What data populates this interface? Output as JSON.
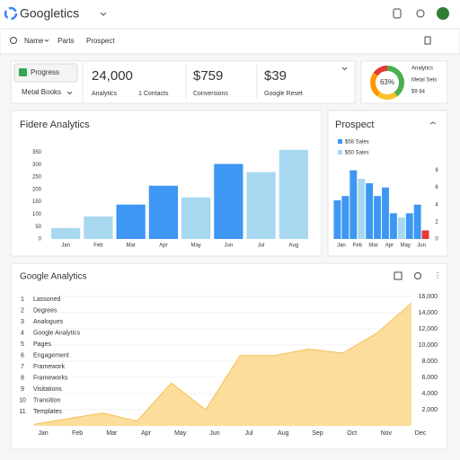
{
  "header": {
    "title": "Googletics"
  },
  "nav": [
    "Name",
    "Parts",
    "Prospect"
  ],
  "filters": {
    "button": "Progress",
    "dropdown": "Metal Books"
  },
  "kpis": [
    {
      "value": "24,000",
      "label": "Analytics",
      "note": "1 Contacts"
    },
    {
      "value": "$759",
      "label": "Conversions"
    },
    {
      "value": "$39",
      "label": "Google Reset"
    }
  ],
  "donut": {
    "label": "63%",
    "values": [
      40,
      20,
      25,
      15
    ],
    "colors": [
      "#4caf50",
      "#fbc02d",
      "#ff9800",
      "#e53935"
    ],
    "legend": [
      "Analytics",
      "Metal Sets",
      "$9 84"
    ]
  },
  "bar_chart": {
    "type": "bar",
    "title": "Fidere Analytics",
    "categories": [
      "Jan",
      "Feb",
      "Mar",
      "Apr",
      "May",
      "Jun",
      "Jul",
      "Aug"
    ],
    "values": [
      44,
      91,
      139,
      215,
      168,
      303,
      270,
      360
    ],
    "colors": [
      "#a8d8f0",
      "#a8d8f0",
      "#3d97f3",
      "#3d97f3",
      "#a8d8f0",
      "#3d97f3",
      "#a8d8f0",
      "#a8d8f0"
    ],
    "ylim": [
      0,
      370
    ],
    "yticks": [
      0,
      50,
      100,
      150,
      200,
      250,
      300,
      350
    ]
  },
  "prospect_chart": {
    "type": "bar",
    "title": "Prospect",
    "categories": [
      "Jan",
      null,
      "Feb",
      null,
      "Mar",
      null,
      "Apr",
      null,
      "May",
      null,
      "Jun",
      null
    ],
    "values": [
      4.5,
      5,
      8,
      7,
      6.5,
      5,
      6,
      3,
      2.5,
      3,
      4,
      1
    ],
    "colors": [
      "#3d97f3",
      "#3d97f3",
      "#3d97f3",
      "#a8d8f0",
      "#3d97f3",
      "#3d97f3",
      "#3d97f3",
      "#3d97f3",
      "#a8d8f0",
      "#3d97f3",
      "#3d97f3",
      "#e53935"
    ],
    "legend": [
      {
        "name": "$58 Sales",
        "color": "#3d97f3"
      },
      {
        "name": "$50 Sales",
        "color": "#a8d8f0"
      }
    ],
    "ylim": [
      0,
      9
    ],
    "yticks": [
      0,
      2,
      4,
      6,
      8
    ]
  },
  "area_chart": {
    "type": "area",
    "title": "Google Analytics",
    "categories": [
      "Jan",
      "Feb",
      "Mar",
      "Apr",
      "May",
      "Jun",
      "Jul",
      "Aug",
      "Sep",
      "Oct",
      "Nov",
      "Dec"
    ],
    "values": [
      200,
      900,
      1600,
      600,
      5300,
      2000,
      8700,
      8700,
      9500,
      9000,
      11500,
      15200
    ],
    "color": "#fcd78a",
    "ylim": [
      0,
      16000
    ],
    "yticks": [
      {
        "value": 2000,
        "label": "2,000"
      },
      {
        "value": 4000,
        "label": "4,000"
      },
      {
        "value": 6000,
        "label": "6,000"
      },
      {
        "value": 8000,
        "label": "8,000"
      },
      {
        "value": 10000,
        "label": "10,000"
      },
      {
        "value": 12000,
        "label": "12,000"
      },
      {
        "value": 14000,
        "label": "14,000"
      },
      {
        "value": 16000,
        "label": "16,000"
      }
    ],
    "list": [
      {
        "rank": "1",
        "name": "Lassoned"
      },
      {
        "rank": "2",
        "name": "Degrees"
      },
      {
        "rank": "3",
        "name": "Analogues"
      },
      {
        "rank": "4",
        "name": "Google Analytics"
      },
      {
        "rank": "5",
        "name": "Pages"
      },
      {
        "rank": "6",
        "name": "Engagement"
      },
      {
        "rank": "7",
        "name": "Framework"
      },
      {
        "rank": "8",
        "name": "Frameworks"
      },
      {
        "rank": "9",
        "name": "Visitations"
      },
      {
        "rank": "10",
        "name": "Transition"
      },
      {
        "rank": "11",
        "name": "Templates"
      }
    ]
  }
}
